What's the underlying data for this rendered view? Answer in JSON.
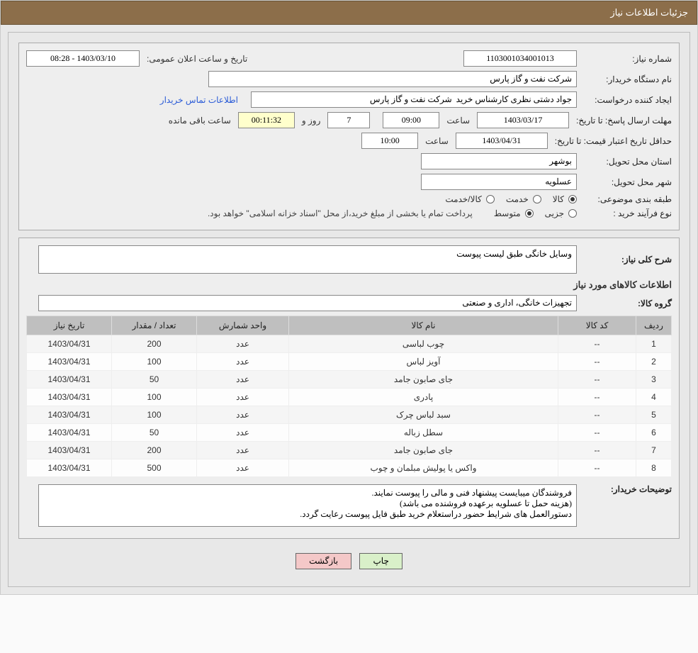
{
  "header": {
    "title": "جزئیات اطلاعات نیاز"
  },
  "form": {
    "need_number": {
      "label": "شماره نیاز:",
      "value": "1103001034001013"
    },
    "announce": {
      "label": "تاریخ و ساعت اعلان عمومی:",
      "value": "1403/03/10 - 08:28"
    },
    "buyer_org": {
      "label": "نام دستگاه خریدار:",
      "value": "شرکت نفت و گاز پارس"
    },
    "requester": {
      "label": "ایجاد کننده درخواست:",
      "value": "جواد دشتی نظری کارشناس خرید  شرکت نفت و گاز پارس"
    },
    "contact_link": "اطلاعات تماس خریدار",
    "deadline": {
      "label": "مهلت ارسال پاسخ: تا تاریخ:",
      "date": "1403/03/17",
      "time_label": "ساعت",
      "time": "09:00",
      "days": "7",
      "days_label": "روز و",
      "remaining": "00:11:32",
      "remaining_label": "ساعت باقی مانده"
    },
    "price_validity": {
      "label": "حداقل تاریخ اعتبار قیمت: تا تاریخ:",
      "date": "1403/04/31",
      "time_label": "ساعت",
      "time": "10:00"
    },
    "delivery_province": {
      "label": "استان محل تحویل:",
      "value": "بوشهر"
    },
    "delivery_city": {
      "label": "شهر محل تحویل:",
      "value": "عسلویه"
    },
    "classification": {
      "label": "طبقه بندی موضوعی:",
      "options": [
        {
          "label": "کالا",
          "selected": true
        },
        {
          "label": "خدمت",
          "selected": false
        },
        {
          "label": "کالا/خدمت",
          "selected": false
        }
      ]
    },
    "process_type": {
      "label": "نوع فرآیند خرید :",
      "options": [
        {
          "label": "جزیی",
          "selected": false
        },
        {
          "label": "متوسط",
          "selected": true
        }
      ],
      "note": "پرداخت تمام یا بخشی از مبلغ خرید،از محل \"اسناد خزانه اسلامی\" خواهد بود."
    }
  },
  "need_summary": {
    "label": "شرح کلی نیاز:",
    "value": "وسایل خانگی طبق لیست پیوست"
  },
  "items_section_title": "اطلاعات کالاهای مورد نیاز",
  "product_group": {
    "label": "گروه کالا:",
    "value": "تجهیزات خانگی، اداری و صنعتی"
  },
  "table": {
    "columns": [
      "ردیف",
      "کد کالا",
      "نام کالا",
      "واحد شمارش",
      "تعداد / مقدار",
      "تاریخ نیاز"
    ],
    "rows": [
      [
        "1",
        "--",
        "چوب لباسی",
        "عدد",
        "200",
        "1403/04/31"
      ],
      [
        "2",
        "--",
        "آویز لباس",
        "عدد",
        "100",
        "1403/04/31"
      ],
      [
        "3",
        "--",
        "جای صابون جامد",
        "عدد",
        "50",
        "1403/04/31"
      ],
      [
        "4",
        "--",
        "پادری",
        "عدد",
        "100",
        "1403/04/31"
      ],
      [
        "5",
        "--",
        "سبد لباس چرک",
        "عدد",
        "100",
        "1403/04/31"
      ],
      [
        "6",
        "--",
        "سطل زباله",
        "عدد",
        "50",
        "1403/04/31"
      ],
      [
        "7",
        "--",
        "جای صابون جامد",
        "عدد",
        "200",
        "1403/04/31"
      ],
      [
        "8",
        "--",
        "واکس یا پولیش مبلمان و چوب",
        "عدد",
        "500",
        "1403/04/31"
      ]
    ]
  },
  "buyer_notes": {
    "label": "توضیحات خریدار:",
    "value": "فروشندگان میبایست پیشنهاد فنی و مالی را پیوست نمایند.\n(هزینه حمل تا عسلویه برعهده فروشنده می باشد)\nدستورالعمل های شرایط حضور دراستعلام خرید طبق فایل پیوست رعایت گردد."
  },
  "buttons": {
    "print": "چاپ",
    "back": "بازگشت"
  },
  "styles": {
    "header_bg": "#8c6e4a",
    "header_fg": "#ffffff",
    "page_bg": "#e8e8e8",
    "th_bg": "#bfbfbf",
    "btn_print_bg": "#d9f0c9",
    "btn_back_bg": "#f4c8c8",
    "link_color": "#2a5bd7"
  }
}
